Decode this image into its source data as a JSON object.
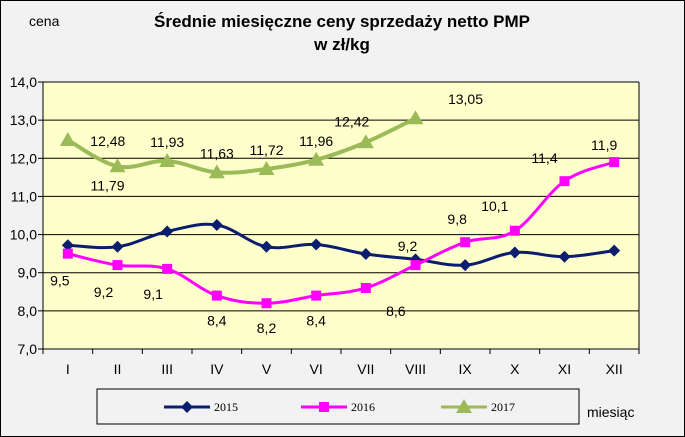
{
  "chart_data": {
    "type": "line",
    "title": "Średnie miesięczne ceny sprzedaży netto PMP",
    "subtitle": "w zł/kg",
    "ylabel": "cena",
    "xlabel": "miesiąc",
    "categories": [
      "I",
      "II",
      "III",
      "IV",
      "V",
      "VI",
      "VII",
      "VIII",
      "IX",
      "X",
      "XI",
      "XII"
    ],
    "ylim": [
      7.0,
      14.0
    ],
    "yticks": [
      "7,0",
      "8,0",
      "9,0",
      "10,0",
      "11,0",
      "12,0",
      "13,0",
      "14,0"
    ],
    "grid": true,
    "plot_background": "#ffffcc",
    "series": [
      {
        "name": "2015",
        "color": "#0a1d6e",
        "marker": "diamond",
        "values": [
          9.72,
          9.68,
          10.08,
          10.25,
          9.68,
          9.74,
          9.49,
          9.35,
          9.2,
          9.53,
          9.42,
          9.58
        ],
        "labels": [
          null,
          null,
          null,
          null,
          null,
          null,
          null,
          null,
          null,
          null,
          null,
          null
        ]
      },
      {
        "name": "2016",
        "color": "#ff00ff",
        "marker": "square",
        "values": [
          9.5,
          9.2,
          9.1,
          8.4,
          8.2,
          8.4,
          8.6,
          9.2,
          9.8,
          10.1,
          11.4,
          11.9
        ],
        "labels": [
          "9,5",
          "9,2",
          "9,1",
          "8,4",
          "8,2",
          "8,4",
          "8,6",
          "9,2",
          "9,8",
          "10,1",
          "11,4",
          "11,9"
        ]
      },
      {
        "name": "2017",
        "color": "#9bbb59",
        "marker": "triangle",
        "values": [
          12.48,
          11.79,
          11.93,
          11.63,
          11.72,
          11.96,
          12.42,
          13.05,
          null,
          null,
          null,
          null
        ],
        "labels": [
          "12,48",
          "11,79",
          "11,93",
          "11,63",
          "11,72",
          "11,96",
          "12,42",
          "13,05",
          null,
          null,
          null,
          null
        ]
      }
    ],
    "legend": {
      "position": "bottom",
      "entries": [
        "2015",
        "2016",
        "2017"
      ]
    }
  }
}
